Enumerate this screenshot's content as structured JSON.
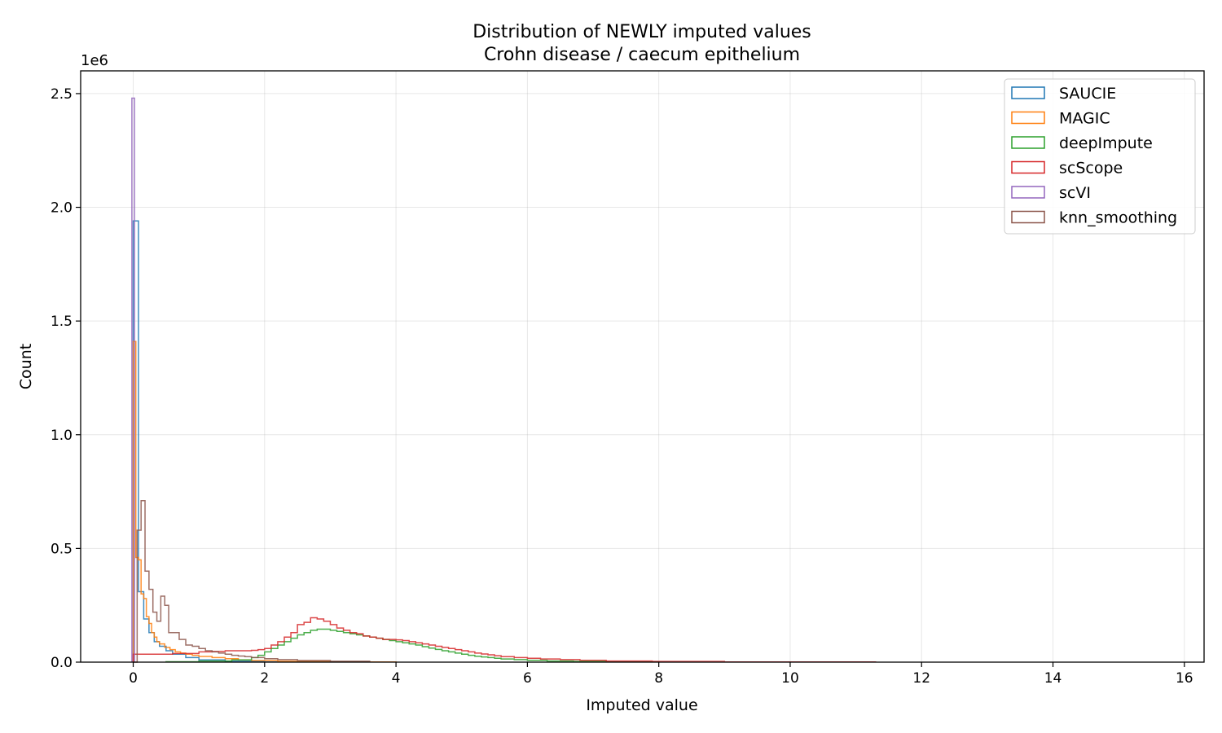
{
  "chart_data": {
    "type": "histogram",
    "title": "Distribution of NEWLY imputed values",
    "subtitle": "Crohn disease / caecum epithelium",
    "xlabel": "Imputed value",
    "ylabel": "Count",
    "y_offset_label": "1e6",
    "xlim": [
      -0.8,
      16.3
    ],
    "ylim": [
      0,
      2.6
    ],
    "xticks": [
      0,
      2,
      4,
      6,
      8,
      10,
      12,
      14,
      16
    ],
    "xtick_labels": [
      "0",
      "2",
      "4",
      "6",
      "8",
      "10",
      "12",
      "14",
      "16"
    ],
    "yticks": [
      0.0,
      0.5,
      1.0,
      1.5,
      2.0,
      2.5
    ],
    "ytick_labels": [
      "0.0",
      "0.5",
      "1.0",
      "1.5",
      "2.0",
      "2.5"
    ],
    "y_unit_multiplier": 1000000,
    "grid": true,
    "legend_position": "top-right",
    "series": [
      {
        "name": "SAUCIE",
        "color": "#1f77b4",
        "bins": [
          [
            0.0,
            0.08,
            1.94
          ],
          [
            0.08,
            0.16,
            0.31
          ],
          [
            0.16,
            0.24,
            0.19
          ],
          [
            0.24,
            0.32,
            0.13
          ],
          [
            0.32,
            0.4,
            0.09
          ],
          [
            0.4,
            0.5,
            0.07
          ],
          [
            0.5,
            0.6,
            0.05
          ],
          [
            0.6,
            0.8,
            0.035
          ],
          [
            0.8,
            1.0,
            0.02
          ],
          [
            1.0,
            1.4,
            0.01
          ],
          [
            1.4,
            2.0,
            0.004
          ],
          [
            2.0,
            3.0,
            0.001
          ]
        ]
      },
      {
        "name": "MAGIC",
        "color": "#ff7f0e",
        "bins": [
          [
            0.0,
            0.04,
            1.41
          ],
          [
            0.04,
            0.08,
            0.46
          ],
          [
            0.08,
            0.12,
            0.45
          ],
          [
            0.12,
            0.16,
            0.3
          ],
          [
            0.16,
            0.2,
            0.28
          ],
          [
            0.2,
            0.24,
            0.2
          ],
          [
            0.24,
            0.28,
            0.17
          ],
          [
            0.28,
            0.32,
            0.13
          ],
          [
            0.32,
            0.36,
            0.11
          ],
          [
            0.36,
            0.4,
            0.09
          ],
          [
            0.4,
            0.48,
            0.08
          ],
          [
            0.48,
            0.56,
            0.065
          ],
          [
            0.56,
            0.64,
            0.055
          ],
          [
            0.64,
            0.72,
            0.045
          ],
          [
            0.72,
            0.8,
            0.04
          ],
          [
            0.8,
            0.9,
            0.035
          ],
          [
            0.9,
            1.0,
            0.03
          ],
          [
            1.0,
            1.2,
            0.025
          ],
          [
            1.2,
            1.4,
            0.02
          ],
          [
            1.4,
            1.6,
            0.015
          ],
          [
            1.6,
            1.8,
            0.01
          ],
          [
            1.8,
            2.2,
            0.007
          ],
          [
            2.2,
            3.0,
            0.004
          ],
          [
            3.0,
            4.0,
            0.001
          ]
        ]
      },
      {
        "name": "deepImpute",
        "color": "#2ca02c",
        "bins": [
          [
            0.5,
            1.0,
            0.002
          ],
          [
            1.0,
            1.5,
            0.005
          ],
          [
            1.5,
            1.8,
            0.01
          ],
          [
            1.8,
            1.9,
            0.02
          ],
          [
            1.9,
            2.0,
            0.03
          ],
          [
            2.0,
            2.1,
            0.045
          ],
          [
            2.1,
            2.2,
            0.06
          ],
          [
            2.2,
            2.3,
            0.075
          ],
          [
            2.3,
            2.4,
            0.09
          ],
          [
            2.4,
            2.5,
            0.105
          ],
          [
            2.5,
            2.6,
            0.12
          ],
          [
            2.6,
            2.7,
            0.13
          ],
          [
            2.7,
            2.8,
            0.14
          ],
          [
            2.8,
            2.9,
            0.145
          ],
          [
            2.9,
            3.0,
            0.145
          ],
          [
            3.0,
            3.1,
            0.14
          ],
          [
            3.1,
            3.2,
            0.135
          ],
          [
            3.2,
            3.3,
            0.13
          ],
          [
            3.3,
            3.4,
            0.125
          ],
          [
            3.4,
            3.5,
            0.12
          ],
          [
            3.5,
            3.6,
            0.115
          ],
          [
            3.6,
            3.7,
            0.11
          ],
          [
            3.7,
            3.8,
            0.105
          ],
          [
            3.8,
            3.9,
            0.1
          ],
          [
            3.9,
            4.0,
            0.095
          ],
          [
            4.0,
            4.1,
            0.09
          ],
          [
            4.1,
            4.2,
            0.085
          ],
          [
            4.2,
            4.3,
            0.08
          ],
          [
            4.3,
            4.4,
            0.075
          ],
          [
            4.4,
            4.5,
            0.068
          ],
          [
            4.5,
            4.6,
            0.062
          ],
          [
            4.6,
            4.7,
            0.056
          ],
          [
            4.7,
            4.8,
            0.05
          ],
          [
            4.8,
            4.9,
            0.045
          ],
          [
            4.9,
            5.0,
            0.04
          ],
          [
            5.0,
            5.1,
            0.035
          ],
          [
            5.1,
            5.2,
            0.03
          ],
          [
            5.2,
            5.3,
            0.026
          ],
          [
            5.3,
            5.4,
            0.023
          ],
          [
            5.4,
            5.5,
            0.02
          ],
          [
            5.5,
            5.6,
            0.017
          ],
          [
            5.6,
            5.8,
            0.014
          ],
          [
            5.8,
            6.0,
            0.011
          ],
          [
            6.0,
            6.3,
            0.008
          ],
          [
            6.3,
            6.7,
            0.005
          ],
          [
            6.7,
            7.2,
            0.003
          ],
          [
            7.2,
            8.0,
            0.001
          ]
        ]
      },
      {
        "name": "scScope",
        "color": "#d62728",
        "bins": [
          [
            0.0,
            0.6,
            0.035
          ],
          [
            0.6,
            1.0,
            0.038
          ],
          [
            1.0,
            1.2,
            0.045
          ],
          [
            1.2,
            1.4,
            0.047
          ],
          [
            1.4,
            1.6,
            0.05
          ],
          [
            1.6,
            1.8,
            0.05
          ],
          [
            1.8,
            1.9,
            0.052
          ],
          [
            1.9,
            2.0,
            0.055
          ],
          [
            2.0,
            2.1,
            0.06
          ],
          [
            2.1,
            2.2,
            0.075
          ],
          [
            2.2,
            2.3,
            0.09
          ],
          [
            2.3,
            2.4,
            0.11
          ],
          [
            2.4,
            2.5,
            0.13
          ],
          [
            2.5,
            2.6,
            0.165
          ],
          [
            2.6,
            2.7,
            0.175
          ],
          [
            2.7,
            2.8,
            0.195
          ],
          [
            2.8,
            2.9,
            0.19
          ],
          [
            2.9,
            3.0,
            0.18
          ],
          [
            3.0,
            3.1,
            0.165
          ],
          [
            3.1,
            3.2,
            0.15
          ],
          [
            3.2,
            3.3,
            0.14
          ],
          [
            3.3,
            3.4,
            0.13
          ],
          [
            3.4,
            3.5,
            0.125
          ],
          [
            3.5,
            3.6,
            0.115
          ],
          [
            3.6,
            3.7,
            0.11
          ],
          [
            3.7,
            3.8,
            0.105
          ],
          [
            3.8,
            3.9,
            0.1
          ],
          [
            3.9,
            4.0,
            0.1
          ],
          [
            4.0,
            4.1,
            0.098
          ],
          [
            4.1,
            4.2,
            0.095
          ],
          [
            4.2,
            4.3,
            0.09
          ],
          [
            4.3,
            4.4,
            0.085
          ],
          [
            4.4,
            4.5,
            0.08
          ],
          [
            4.5,
            4.6,
            0.075
          ],
          [
            4.6,
            4.7,
            0.07
          ],
          [
            4.7,
            4.8,
            0.065
          ],
          [
            4.8,
            4.9,
            0.06
          ],
          [
            4.9,
            5.0,
            0.055
          ],
          [
            5.0,
            5.1,
            0.05
          ],
          [
            5.1,
            5.2,
            0.045
          ],
          [
            5.2,
            5.3,
            0.04
          ],
          [
            5.3,
            5.4,
            0.036
          ],
          [
            5.4,
            5.5,
            0.032
          ],
          [
            5.5,
            5.6,
            0.028
          ],
          [
            5.6,
            5.8,
            0.024
          ],
          [
            5.8,
            6.0,
            0.02
          ],
          [
            6.0,
            6.2,
            0.017
          ],
          [
            6.2,
            6.5,
            0.014
          ],
          [
            6.5,
            6.8,
            0.011
          ],
          [
            6.8,
            7.2,
            0.008
          ],
          [
            7.2,
            7.9,
            0.005
          ],
          [
            7.9,
            9.0,
            0.003
          ],
          [
            9.0,
            11.3,
            0.001
          ]
        ]
      },
      {
        "name": "scVI",
        "color": "#9467bd",
        "bins": [
          [
            -0.02,
            0.02,
            2.48
          ]
        ]
      },
      {
        "name": "knn_smoothing",
        "color": "#8c564b",
        "bins": [
          [
            0.0,
            0.06,
            0.0
          ],
          [
            0.06,
            0.12,
            0.58
          ],
          [
            0.12,
            0.18,
            0.71
          ],
          [
            0.18,
            0.24,
            0.4
          ],
          [
            0.24,
            0.3,
            0.32
          ],
          [
            0.3,
            0.36,
            0.22
          ],
          [
            0.36,
            0.42,
            0.18
          ],
          [
            0.42,
            0.48,
            0.29
          ],
          [
            0.48,
            0.54,
            0.25
          ],
          [
            0.54,
            0.6,
            0.13
          ],
          [
            0.6,
            0.7,
            0.13
          ],
          [
            0.7,
            0.8,
            0.1
          ],
          [
            0.8,
            0.9,
            0.075
          ],
          [
            0.9,
            1.0,
            0.07
          ],
          [
            1.0,
            1.1,
            0.06
          ],
          [
            1.1,
            1.2,
            0.05
          ],
          [
            1.2,
            1.3,
            0.045
          ],
          [
            1.3,
            1.4,
            0.04
          ],
          [
            1.4,
            1.5,
            0.035
          ],
          [
            1.5,
            1.6,
            0.03
          ],
          [
            1.6,
            1.7,
            0.027
          ],
          [
            1.7,
            1.8,
            0.024
          ],
          [
            1.8,
            2.0,
            0.02
          ],
          [
            2.0,
            2.2,
            0.015
          ],
          [
            2.2,
            2.5,
            0.011
          ],
          [
            2.5,
            3.0,
            0.007
          ],
          [
            3.0,
            3.6,
            0.004
          ]
        ]
      }
    ]
  }
}
